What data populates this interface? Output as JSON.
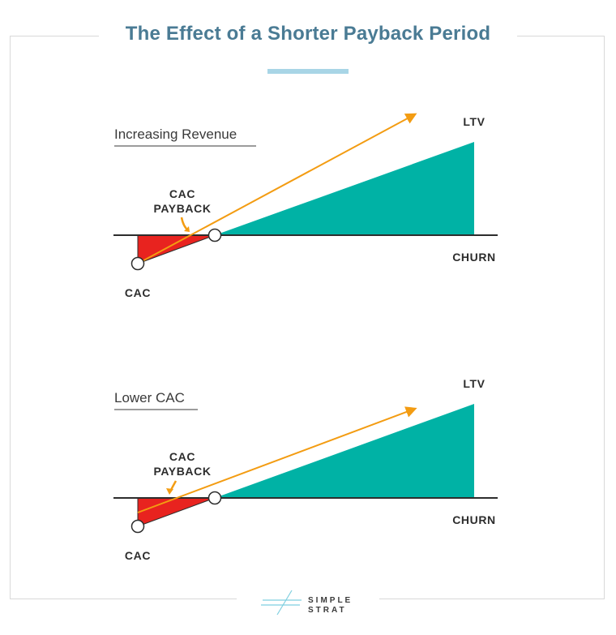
{
  "header": {
    "title": "The Effect of a Shorter Payback Period"
  },
  "panels": [
    {
      "section_label": "Increasing Revenue",
      "ltv_label": "LTV",
      "churn_label": "CHURN",
      "cac_label": "CAC",
      "payback_label_line1": "CAC",
      "payback_label_line2": "PAYBACK"
    },
    {
      "section_label": "Lower CAC",
      "ltv_label": "LTV",
      "churn_label": "CHURN",
      "cac_label": "CAC",
      "payback_label_line1": "CAC",
      "payback_label_line2": "PAYBACK"
    }
  ],
  "logo": {
    "line1": "SIMPLE",
    "line2": "STRAT"
  },
  "colors": {
    "title": "#4a7b94",
    "accent_bar": "#a8d5e6",
    "ltv_fill": "#00b2a5",
    "cac_fill": "#e8231f",
    "revenue_arrow": "#f39c12",
    "axis": "#2d2d2d"
  }
}
